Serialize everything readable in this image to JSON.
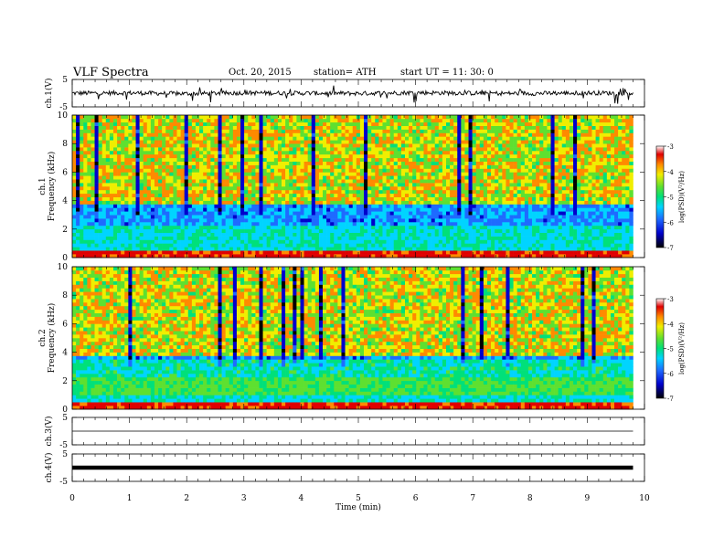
{
  "header": {
    "title": "VLF Spectra",
    "date": "Oct. 20, 2015",
    "station": "station= ATH",
    "start_ut": "start UT = 11: 30: 0"
  },
  "colors": {
    "colormap": [
      "#000000",
      "#0000cc",
      "#1e6bff",
      "#00d4ff",
      "#00e07a",
      "#5ee030",
      "#f0ee00",
      "#ff8a00",
      "#e00000",
      "#ffffff"
    ],
    "waveform": "#000000",
    "axis": "#000000"
  },
  "chart_data": [
    {
      "type": "line",
      "name": "ch1-waveform",
      "ylabel": "ch.1(V)",
      "ylim": [
        -5,
        5
      ],
      "yticks": [
        "5",
        "-5"
      ],
      "x": [
        0,
        1,
        2,
        3,
        4,
        5,
        6,
        7,
        8,
        9,
        9.8
      ],
      "values": [
        0,
        0.1,
        -0.2,
        0.1,
        0,
        -0.1,
        0.2,
        0,
        -0.1,
        0.1,
        0
      ]
    },
    {
      "type": "heatmap",
      "name": "ch1-spectrogram",
      "ylabel_top": "ch.1",
      "ylabel": "Frequency (kHz)",
      "ylim": [
        0,
        10
      ],
      "yticks": [
        "0",
        "2",
        "4",
        "6",
        "8",
        "10"
      ],
      "colorbar": {
        "label": "log(PSD)(V²/Hz)",
        "range": [
          -7,
          -3
        ],
        "ticks": [
          "-3",
          "-4",
          "-5",
          "-6",
          "-7"
        ]
      }
    },
    {
      "type": "heatmap",
      "name": "ch2-spectrogram",
      "ylabel_top": "ch.2",
      "ylabel": "Frequency (kHz)",
      "ylim": [
        0,
        10
      ],
      "yticks": [
        "0",
        "2",
        "4",
        "6",
        "8",
        "10"
      ],
      "colorbar": {
        "label": "log(PSD)(V²/Hz)",
        "range": [
          -7,
          -3
        ],
        "ticks": [
          "-3",
          "-4",
          "-5",
          "-6",
          "-7"
        ]
      }
    },
    {
      "type": "line",
      "name": "ch3-waveform",
      "ylabel": "ch.3(V)",
      "ylim": [
        -5,
        5
      ],
      "yticks": [
        "5",
        "-5"
      ],
      "x": [
        0,
        9.8
      ],
      "values": [
        0,
        0
      ]
    },
    {
      "type": "line",
      "name": "ch4-waveform",
      "ylabel": "ch.4(V)",
      "ylim": [
        -5,
        5
      ],
      "yticks": [
        "5",
        "-5"
      ],
      "x": [
        0,
        9.8
      ],
      "values": [
        0,
        0
      ]
    }
  ],
  "xaxis": {
    "label": "Time (min)",
    "range": [
      0,
      10
    ],
    "ticks": [
      "0",
      "1",
      "2",
      "3",
      "4",
      "5",
      "6",
      "7",
      "8",
      "9",
      "10"
    ]
  }
}
